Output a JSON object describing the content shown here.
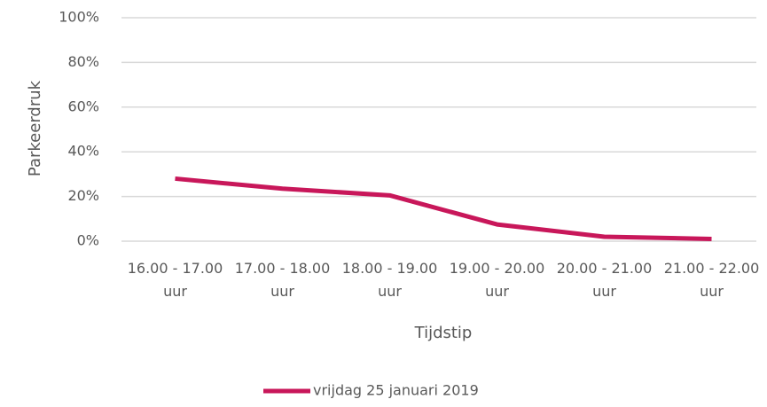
{
  "chart_data": {
    "type": "line",
    "x_label": "Tijdstip",
    "y_label": "Parkeerdruk",
    "categories": [
      "16.00 - 17.00 uur",
      "17.00 - 18.00 uur",
      "18.00 - 19.00 uur",
      "19.00 - 20.00 uur",
      "20.00 - 21.00 uur",
      "21.00 - 22.00 uur"
    ],
    "series": [
      {
        "name": "vrijdag 25 januari 2019",
        "color": "#c8175a",
        "values": [
          28,
          23.5,
          20.5,
          7.5,
          2,
          1
        ]
      }
    ],
    "ylim": [
      0,
      100
    ],
    "yticks": [
      {
        "value": 0,
        "label": "0%"
      },
      {
        "value": 20,
        "label": "20%"
      },
      {
        "value": 40,
        "label": "40%"
      },
      {
        "value": 60,
        "label": "60%"
      },
      {
        "value": 80,
        "label": "80%"
      },
      {
        "value": 100,
        "label": "100%"
      }
    ],
    "grid": true,
    "legend": "bottom"
  }
}
